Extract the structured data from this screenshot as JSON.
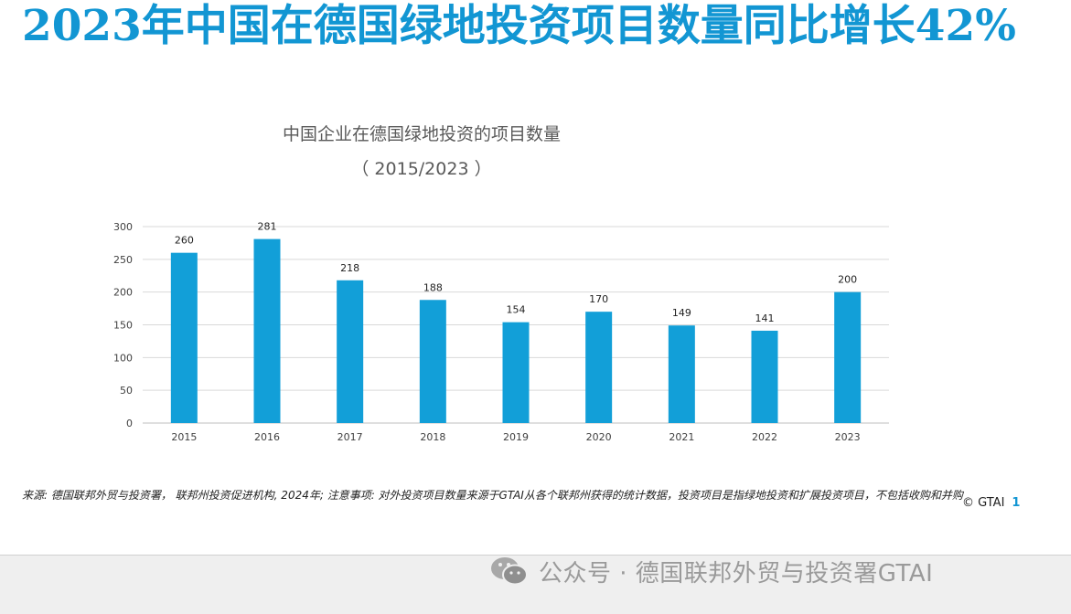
{
  "slide": {
    "headline": "2023年中国在德国绿地投资项目数量同比增长42%",
    "footnote": "来源: 德国联邦外贸与投资署， 联邦州投资促进机构, 2024年; 注意事项: 对外投资项目数量来源于GTAI从各个联邦州获得的统计数据，投资项目是指绿地投资和扩展投资项目，不包括收购和并购",
    "copyright": "© GTAI",
    "page_number": "1"
  },
  "watermark": {
    "icon": "wechat-icon",
    "text": "公众号 · 德国联邦外贸与投资署GTAI"
  },
  "colors": {
    "headline": "#1296d3",
    "bar": "#129fd8",
    "grid": "#d9d9d9"
  },
  "chart_data": {
    "type": "bar",
    "title": "中国企业在德国绿地投资的项目数量",
    "subtitle": "（ 2015/2023 ）",
    "categories": [
      "2015",
      "2016",
      "2017",
      "2018",
      "2019",
      "2020",
      "2021",
      "2022",
      "2023"
    ],
    "values": [
      260,
      281,
      218,
      188,
      154,
      170,
      149,
      141,
      200
    ],
    "xlabel": "",
    "ylabel": "",
    "ylim": [
      0,
      300
    ],
    "yticks": [
      0,
      50,
      100,
      150,
      200,
      250,
      300
    ],
    "grid": true,
    "legend": "none",
    "data_labels": true
  }
}
